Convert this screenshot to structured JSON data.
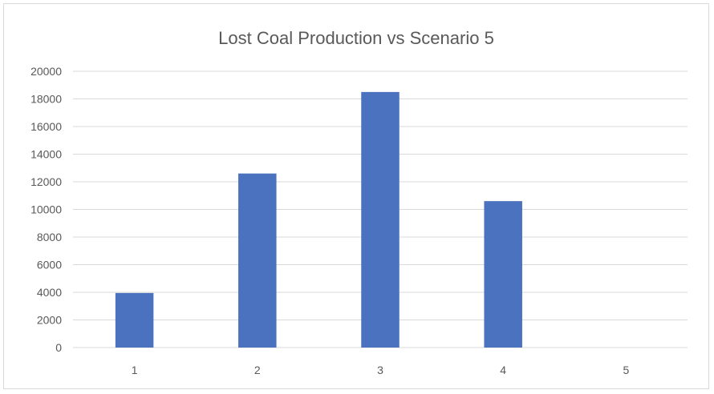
{
  "chart_data": {
    "type": "bar",
    "title": "Lost Coal Production vs Scenario 5",
    "xlabel": "",
    "ylabel": "",
    "categories": [
      "1",
      "2",
      "3",
      "4",
      "5"
    ],
    "values": [
      3950,
      12600,
      18500,
      10600,
      0
    ],
    "ylim": [
      0,
      20000
    ],
    "yticks": [
      0,
      2000,
      4000,
      6000,
      8000,
      10000,
      12000,
      14000,
      16000,
      18000,
      20000
    ],
    "grid": true,
    "legend": "none",
    "colors": {
      "bar": "#4a72be",
      "grid": "#d9d9d9",
      "text": "#595959"
    }
  }
}
